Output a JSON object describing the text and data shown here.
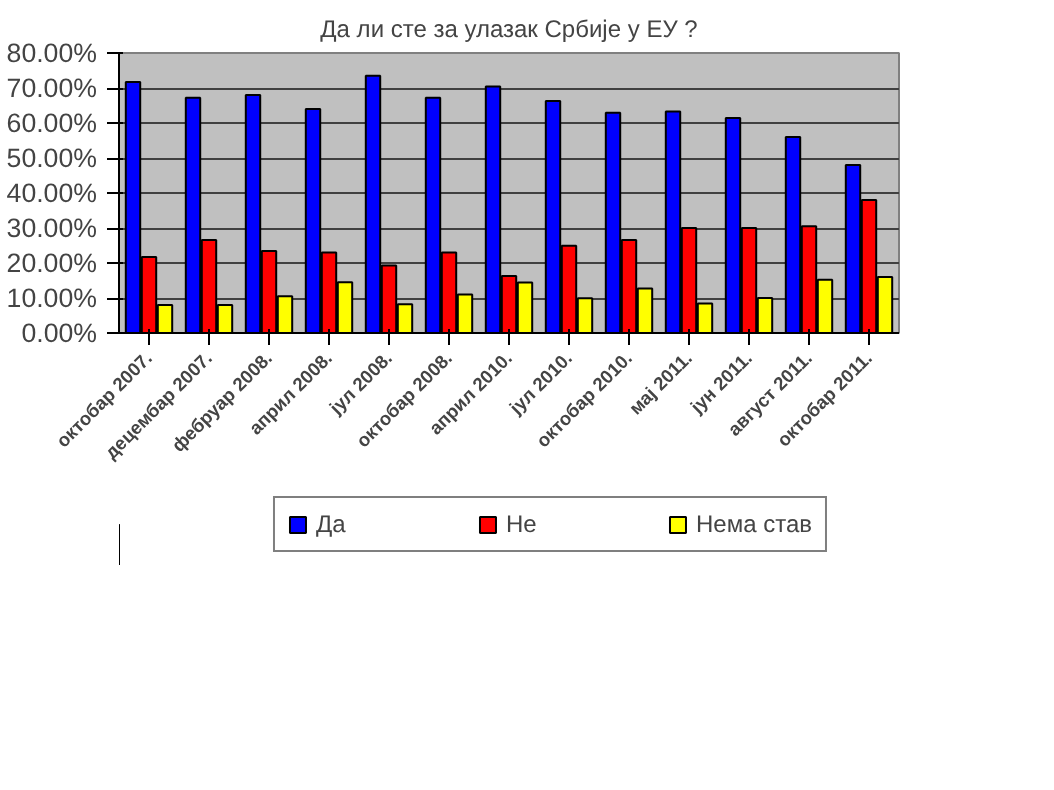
{
  "chart_data": {
    "type": "bar",
    "title": "Да ли сте за улазак Србије у ЕУ ?",
    "categories": [
      "октобар 2007.",
      "децембар 2007.",
      "фебруар 2008.",
      "април 2008.",
      "јул 2008.",
      "октобар 2008.",
      "април 2010.",
      "јул 2010.",
      "октобар 2010.",
      "мај 2011.",
      "јун 2011.",
      "август 2011.",
      "октобар 2011."
    ],
    "series": [
      {
        "name": "Да",
        "color": "#0000ff",
        "values": [
          71.7,
          67.2,
          68,
          64,
          73.5,
          67.2,
          70.4,
          66.3,
          62.9,
          63.3,
          61.4,
          56,
          48
        ]
      },
      {
        "name": "Не",
        "color": "#ff0000",
        "values": [
          21.7,
          26.6,
          23.4,
          23,
          19.3,
          23,
          16.3,
          24.9,
          26.6,
          30,
          30,
          30.5,
          38
        ]
      },
      {
        "name": "Нема став",
        "color": "#ffff00",
        "values": [
          8,
          8,
          10.5,
          14.5,
          8.2,
          11,
          14.4,
          9.9,
          12.7,
          8.4,
          10,
          15.2,
          16
        ]
      }
    ],
    "ylim": [
      0,
      80
    ],
    "yticks": [
      {
        "value": 0,
        "label": "0.00%"
      },
      {
        "value": 10,
        "label": "10.00%"
      },
      {
        "value": 20,
        "label": "20.00%"
      },
      {
        "value": 30,
        "label": "30.00%"
      },
      {
        "value": 40,
        "label": "40.00%"
      },
      {
        "value": 50,
        "label": "50.00%"
      },
      {
        "value": 60,
        "label": "60.00%"
      },
      {
        "value": 70,
        "label": "70.00%"
      },
      {
        "value": 80,
        "label": "80.00%"
      }
    ],
    "grid": "y",
    "legend": "bottom"
  }
}
